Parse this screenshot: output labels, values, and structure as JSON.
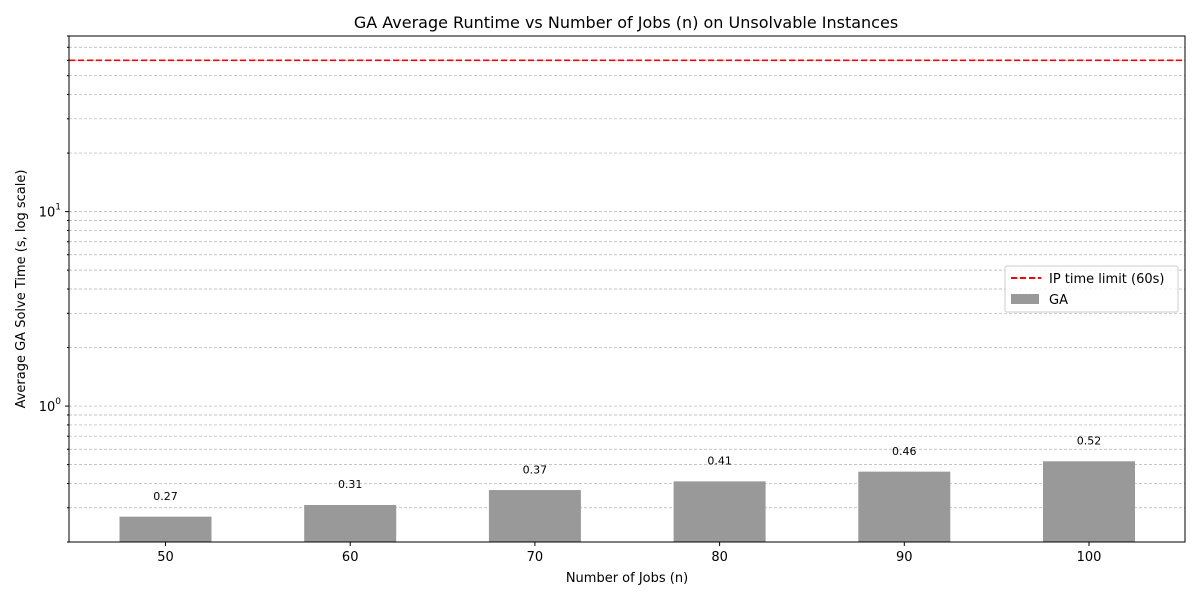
{
  "chart_data": {
    "type": "bar",
    "title": "GA Average Runtime vs Number of Jobs (n) on Unsolvable Instances",
    "xlabel": "Number of Jobs (n)",
    "ylabel": "Average GA Solve Time (s, log scale)",
    "yscale": "log",
    "ylim": [
      0.2,
      80
    ],
    "categories": [
      "50",
      "60",
      "70",
      "80",
      "90",
      "100"
    ],
    "series": [
      {
        "name": "GA",
        "values": [
          0.27,
          0.31,
          0.37,
          0.41,
          0.46,
          0.52
        ],
        "color": "#999999"
      }
    ],
    "data_labels": [
      "0.27",
      "0.31",
      "0.37",
      "0.41",
      "0.46",
      "0.52"
    ],
    "y_tick_labels": [
      {
        "value": 1,
        "base": "10",
        "exp": "0"
      },
      {
        "value": 10,
        "base": "10",
        "exp": "1"
      }
    ],
    "reference_line": {
      "label": "IP time limit (60s)",
      "value": 60,
      "color": "#ff0000",
      "style": "dashed"
    },
    "grid": true,
    "legend": {
      "position": "center-right",
      "entries": [
        "IP time limit (60s)",
        "GA"
      ]
    }
  }
}
